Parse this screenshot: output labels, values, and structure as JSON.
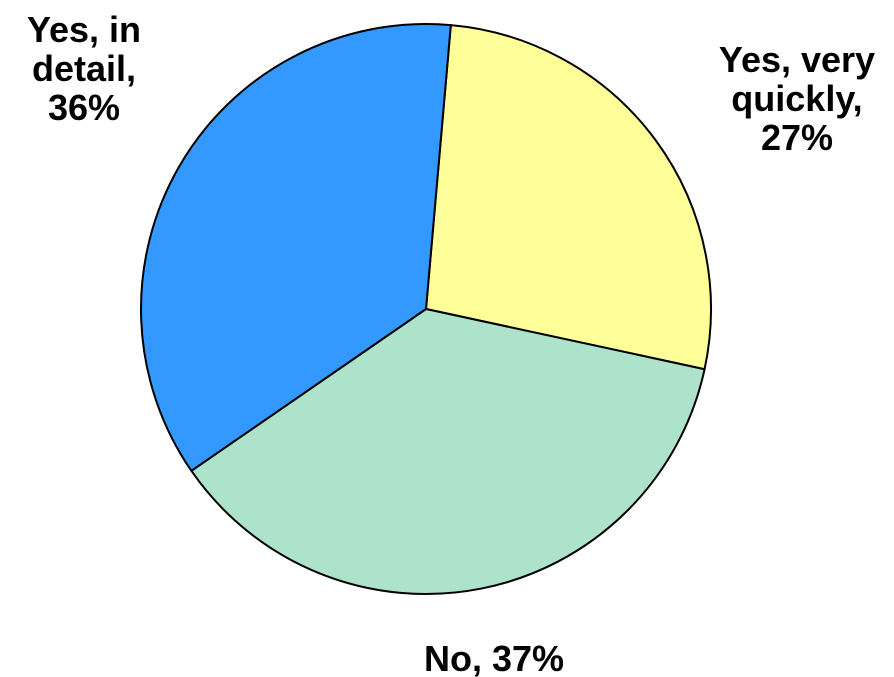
{
  "chart_data": {
    "type": "pie",
    "title": "",
    "slices": [
      {
        "label_lines": [
          "Yes, very",
          "quickly,",
          "27%"
        ],
        "category": "Yes, very quickly",
        "value": 27,
        "color": "#ffff99"
      },
      {
        "label_lines": [
          "No, 37%"
        ],
        "category": "No",
        "value": 37,
        "color": "#aee3cb"
      },
      {
        "label_lines": [
          "Yes, in",
          "detail,",
          "36%"
        ],
        "category": "Yes, in detail",
        "value": 36,
        "color": "#3399ff"
      }
    ],
    "start_angle_deg": 5,
    "direction": "clockwise",
    "legend": "none"
  }
}
